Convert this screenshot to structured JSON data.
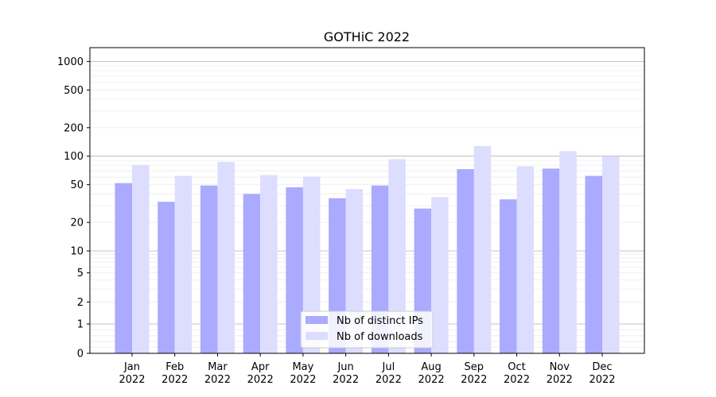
{
  "chart_data": {
    "type": "bar",
    "title": "GOTHiC 2022",
    "xlabel": "",
    "ylabel": "",
    "yscale": "symlog",
    "ylim": [
      0,
      1200
    ],
    "yticks": [
      "0",
      "1",
      "2",
      "5",
      "10",
      "20",
      "50",
      "100",
      "200",
      "500",
      "1000"
    ],
    "grid": true,
    "legend_position": "lower-center",
    "categories": [
      [
        "Jan",
        "2022"
      ],
      [
        "Feb",
        "2022"
      ],
      [
        "Mar",
        "2022"
      ],
      [
        "Apr",
        "2022"
      ],
      [
        "May",
        "2022"
      ],
      [
        "Jun",
        "2022"
      ],
      [
        "Jul",
        "2022"
      ],
      [
        "Aug",
        "2022"
      ],
      [
        "Sep",
        "2022"
      ],
      [
        "Oct",
        "2022"
      ],
      [
        "Nov",
        "2022"
      ],
      [
        "Dec",
        "2022"
      ]
    ],
    "series": [
      {
        "name": "Nb of distinct IPs",
        "color": "#aaaaff",
        "values": [
          52,
          33,
          49,
          40,
          47,
          36,
          49,
          28,
          73,
          35,
          74,
          62
        ]
      },
      {
        "name": "Nb of downloads",
        "color": "#ddddff",
        "values": [
          81,
          62,
          87,
          63,
          61,
          45,
          93,
          37,
          128,
          78,
          113,
          99
        ]
      }
    ]
  }
}
